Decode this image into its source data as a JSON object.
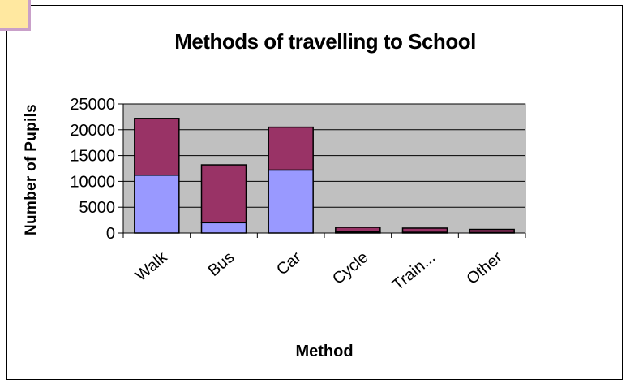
{
  "chart_data": {
    "type": "bar",
    "stacked": true,
    "title": "Methods of travelling to School",
    "xlabel": "Method",
    "ylabel": "Number of Pupils",
    "categories": [
      "Walk",
      "Bus",
      "Car",
      "Cycle",
      "Train...",
      "Other"
    ],
    "series": [
      {
        "values": [
          11200,
          2000,
          12200,
          200,
          150,
          100
        ]
      },
      {
        "values": [
          11000,
          11200,
          8300,
          900,
          800,
          600
        ]
      }
    ],
    "ylim": [
      0,
      25000
    ],
    "yticks": [
      0,
      5000,
      10000,
      15000,
      20000,
      25000
    ],
    "grid": true,
    "legend": "none"
  },
  "colors": {
    "series_1": "#9999ff",
    "series_2": "#993366",
    "plot_background": "#c0c0c0",
    "corner_accent": "#d8b8d8"
  }
}
